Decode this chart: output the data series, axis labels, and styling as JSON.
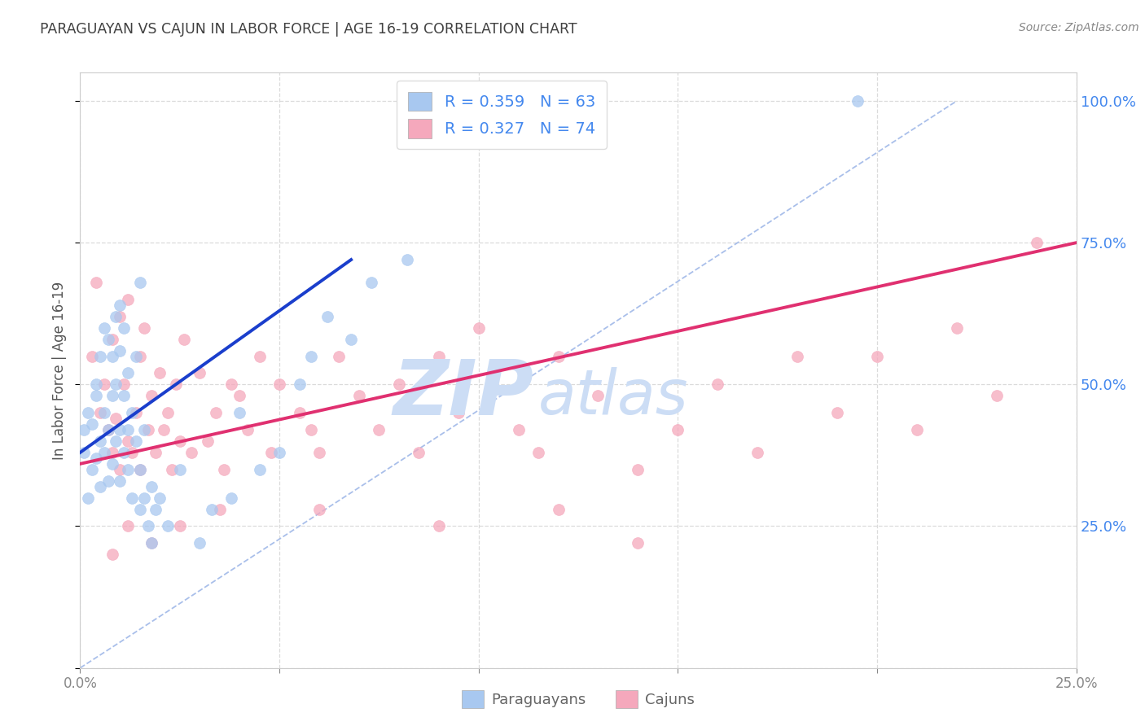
{
  "title": "PARAGUAYAN VS CAJUN IN LABOR FORCE | AGE 16-19 CORRELATION CHART",
  "source_text": "Source: ZipAtlas.com",
  "ylabel": "In Labor Force | Age 16-19",
  "xlim": [
    0.0,
    0.25
  ],
  "ylim": [
    0.0,
    1.05
  ],
  "legend_r1": "R = 0.359",
  "legend_n1": "N = 63",
  "legend_r2": "R = 0.327",
  "legend_n2": "N = 74",
  "paraguayan_color": "#a8c8f0",
  "cajun_color": "#f5a8bc",
  "paraguayan_line_color": "#1a3ecc",
  "cajun_line_color": "#e03070",
  "diagonal_color": "#a0b8e8",
  "watermark_zip": "ZIP",
  "watermark_atlas": "atlas",
  "watermark_color": "#ccddf5",
  "background_color": "#ffffff",
  "grid_color": "#cccccc",
  "title_color": "#404040",
  "source_color": "#888888",
  "right_axis_color": "#4488ee",
  "tick_color": "#888888",
  "paraguayan_x": [
    0.001,
    0.001,
    0.002,
    0.002,
    0.003,
    0.003,
    0.004,
    0.004,
    0.004,
    0.005,
    0.005,
    0.005,
    0.006,
    0.006,
    0.006,
    0.007,
    0.007,
    0.007,
    0.008,
    0.008,
    0.008,
    0.009,
    0.009,
    0.009,
    0.01,
    0.01,
    0.01,
    0.01,
    0.011,
    0.011,
    0.011,
    0.012,
    0.012,
    0.012,
    0.013,
    0.013,
    0.014,
    0.014,
    0.015,
    0.015,
    0.015,
    0.016,
    0.016,
    0.017,
    0.018,
    0.018,
    0.019,
    0.02,
    0.022,
    0.025,
    0.03,
    0.033,
    0.038,
    0.04,
    0.045,
    0.05,
    0.055,
    0.058,
    0.062,
    0.068,
    0.073,
    0.082,
    0.195
  ],
  "paraguayan_y": [
    0.38,
    0.42,
    0.3,
    0.45,
    0.43,
    0.35,
    0.5,
    0.37,
    0.48,
    0.4,
    0.55,
    0.32,
    0.45,
    0.6,
    0.38,
    0.42,
    0.58,
    0.33,
    0.48,
    0.55,
    0.36,
    0.5,
    0.62,
    0.4,
    0.42,
    0.56,
    0.33,
    0.64,
    0.48,
    0.6,
    0.38,
    0.52,
    0.42,
    0.35,
    0.45,
    0.3,
    0.55,
    0.4,
    0.68,
    0.35,
    0.28,
    0.42,
    0.3,
    0.25,
    0.32,
    0.22,
    0.28,
    0.3,
    0.25,
    0.35,
    0.22,
    0.28,
    0.3,
    0.45,
    0.35,
    0.38,
    0.5,
    0.55,
    0.62,
    0.58,
    0.68,
    0.72,
    1.0
  ],
  "cajun_x": [
    0.003,
    0.004,
    0.005,
    0.006,
    0.007,
    0.008,
    0.008,
    0.009,
    0.01,
    0.01,
    0.011,
    0.012,
    0.012,
    0.013,
    0.014,
    0.015,
    0.015,
    0.016,
    0.017,
    0.018,
    0.019,
    0.02,
    0.021,
    0.022,
    0.023,
    0.024,
    0.025,
    0.026,
    0.028,
    0.03,
    0.032,
    0.034,
    0.036,
    0.038,
    0.04,
    0.042,
    0.045,
    0.048,
    0.05,
    0.055,
    0.058,
    0.06,
    0.065,
    0.07,
    0.075,
    0.08,
    0.085,
    0.09,
    0.095,
    0.1,
    0.11,
    0.115,
    0.12,
    0.13,
    0.14,
    0.15,
    0.16,
    0.17,
    0.18,
    0.19,
    0.2,
    0.21,
    0.22,
    0.23,
    0.24,
    0.035,
    0.025,
    0.018,
    0.012,
    0.008,
    0.06,
    0.09,
    0.12,
    0.14
  ],
  "cajun_y": [
    0.55,
    0.68,
    0.45,
    0.5,
    0.42,
    0.58,
    0.38,
    0.44,
    0.62,
    0.35,
    0.5,
    0.4,
    0.65,
    0.38,
    0.45,
    0.55,
    0.35,
    0.6,
    0.42,
    0.48,
    0.38,
    0.52,
    0.42,
    0.45,
    0.35,
    0.5,
    0.4,
    0.58,
    0.38,
    0.52,
    0.4,
    0.45,
    0.35,
    0.5,
    0.48,
    0.42,
    0.55,
    0.38,
    0.5,
    0.45,
    0.42,
    0.38,
    0.55,
    0.48,
    0.42,
    0.5,
    0.38,
    0.55,
    0.45,
    0.6,
    0.42,
    0.38,
    0.55,
    0.48,
    0.35,
    0.42,
    0.5,
    0.38,
    0.55,
    0.45,
    0.55,
    0.42,
    0.6,
    0.48,
    0.75,
    0.28,
    0.25,
    0.22,
    0.25,
    0.2,
    0.28,
    0.25,
    0.28,
    0.22
  ],
  "blue_line_x": [
    0.0,
    0.068
  ],
  "blue_line_y": [
    0.38,
    0.72
  ],
  "pink_line_x": [
    0.0,
    0.25
  ],
  "pink_line_y": [
    0.36,
    0.75
  ]
}
